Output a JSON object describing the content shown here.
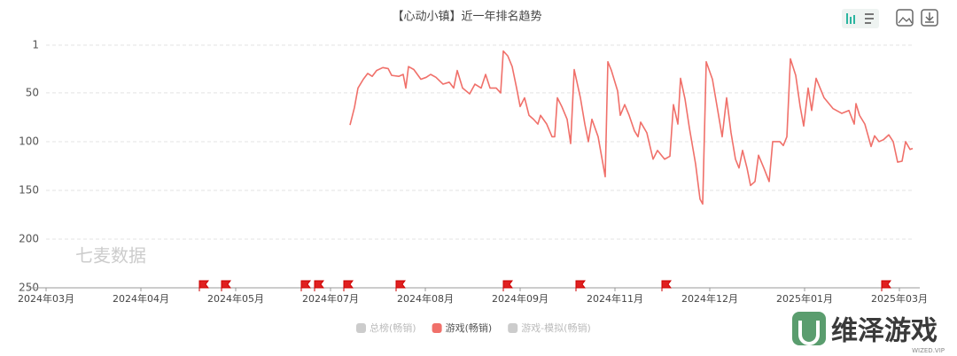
{
  "chart_data": {
    "type": "line",
    "title": "【心动小镇】近一年排名趋势",
    "watermark": "七麦数据",
    "xlim": [
      0,
      978
    ],
    "xticks": [
      {
        "value": 0,
        "label": "2024年03月"
      },
      {
        "value": 107,
        "label": "2024年04月"
      },
      {
        "value": 214,
        "label": "2024年05月"
      },
      {
        "value": 321,
        "label": "2024年07月"
      },
      {
        "value": 428,
        "label": "2024年08月"
      },
      {
        "value": 535,
        "label": "2024年09月"
      },
      {
        "value": 642,
        "label": "2024年11月"
      },
      {
        "value": 749,
        "label": "2024年12月"
      },
      {
        "value": 856,
        "label": "2025年01月"
      },
      {
        "value": 963,
        "label": "2025年03月"
      }
    ],
    "ylim": [
      250,
      1
    ],
    "yticks": [
      1,
      50,
      100,
      150,
      200,
      250
    ],
    "grid": true,
    "series": [
      {
        "name": "总榜(畅销)",
        "color": "#cccccc",
        "visible": false
      },
      {
        "name": "游戏(畅销)",
        "color": "#f0706a",
        "visible": true,
        "x": [
          343,
          348,
          352,
          358,
          363,
          368,
          373,
          380,
          386,
          390,
          398,
          403,
          406,
          409,
          415,
          423,
          429,
          434,
          440,
          448,
          455,
          460,
          464,
          470,
          478,
          484,
          491,
          496,
          501,
          508,
          513,
          516,
          521,
          526,
          531,
          535,
          540,
          545,
          550,
          555,
          558,
          565,
          571,
          574,
          577,
          582,
          588,
          592,
          596,
          603,
          608,
          612,
          616,
          623,
          631,
          634,
          638,
          645,
          648,
          653,
          658,
          664,
          668,
          671,
          678,
          685,
          690,
          698,
          704,
          708,
          713,
          716,
          721,
          726,
          733,
          738,
          741,
          745,
          752,
          758,
          763,
          768,
          773,
          778,
          782,
          786,
          791,
          795,
          800,
          804,
          810,
          816,
          820,
          828,
          832,
          836,
          840,
          846,
          851,
          855,
          860,
          864,
          869,
          878,
          888,
          898,
          906,
          912,
          914,
          918,
          924,
          928,
          931,
          935,
          940,
          945,
          951,
          956,
          961,
          966,
          970,
          975,
          978
        ],
        "values": [
          83,
          65,
          45,
          36,
          30,
          33,
          27,
          24,
          25,
          32,
          33,
          31,
          45,
          23,
          26,
          36,
          34,
          31,
          34,
          41,
          39,
          45,
          27,
          45,
          51,
          41,
          45,
          31,
          45,
          45,
          50,
          7,
          12,
          23,
          45,
          64,
          55,
          73,
          77,
          82,
          73,
          82,
          95,
          95,
          55,
          64,
          77,
          102,
          26,
          55,
          82,
          100,
          77,
          95,
          136,
          18,
          27,
          48,
          73,
          62,
          73,
          89,
          95,
          80,
          91,
          118,
          109,
          118,
          115,
          62,
          82,
          35,
          56,
          86,
          123,
          159,
          164,
          18,
          36,
          68,
          95,
          55,
          91,
          118,
          127,
          109,
          127,
          145,
          141,
          114,
          127,
          141,
          100,
          100,
          104,
          95,
          15,
          32,
          64,
          84,
          45,
          68,
          35,
          55,
          66,
          71,
          68,
          82,
          61,
          73,
          82,
          95,
          105,
          94,
          100,
          98,
          93,
          100,
          121,
          120,
          100,
          108,
          107
        ]
      },
      {
        "name": "游戏-模拟(畅销)",
        "color": "#cccccc",
        "visible": false
      }
    ]
  },
  "branding": {
    "name": "维泽游戏",
    "site": "WIZED.VIP"
  }
}
